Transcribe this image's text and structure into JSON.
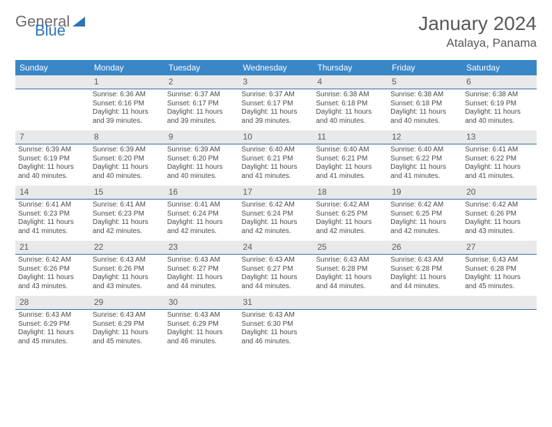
{
  "logo": {
    "part1": "General",
    "part2": "Blue"
  },
  "title": "January 2024",
  "location": "Atalaya, Panama",
  "colors": {
    "header_bg": "#3a87c8",
    "header_text": "#ffffff",
    "daynum_bg": "#e9e9e9",
    "daynum_border": "#2e6ba5",
    "body_text": "#4a4a4a",
    "title_text": "#595959",
    "logo_gray": "#6b6b6b",
    "logo_blue": "#2e72b8"
  },
  "dayHeaders": [
    "Sunday",
    "Monday",
    "Tuesday",
    "Wednesday",
    "Thursday",
    "Friday",
    "Saturday"
  ],
  "weeks": [
    [
      {
        "n": "",
        "lines": []
      },
      {
        "n": "1",
        "lines": [
          "Sunrise: 6:36 AM",
          "Sunset: 6:16 PM",
          "Daylight: 11 hours and 39 minutes."
        ]
      },
      {
        "n": "2",
        "lines": [
          "Sunrise: 6:37 AM",
          "Sunset: 6:17 PM",
          "Daylight: 11 hours and 39 minutes."
        ]
      },
      {
        "n": "3",
        "lines": [
          "Sunrise: 6:37 AM",
          "Sunset: 6:17 PM",
          "Daylight: 11 hours and 39 minutes."
        ]
      },
      {
        "n": "4",
        "lines": [
          "Sunrise: 6:38 AM",
          "Sunset: 6:18 PM",
          "Daylight: 11 hours and 40 minutes."
        ]
      },
      {
        "n": "5",
        "lines": [
          "Sunrise: 6:38 AM",
          "Sunset: 6:18 PM",
          "Daylight: 11 hours and 40 minutes."
        ]
      },
      {
        "n": "6",
        "lines": [
          "Sunrise: 6:38 AM",
          "Sunset: 6:19 PM",
          "Daylight: 11 hours and 40 minutes."
        ]
      }
    ],
    [
      {
        "n": "7",
        "lines": [
          "Sunrise: 6:39 AM",
          "Sunset: 6:19 PM",
          "Daylight: 11 hours and 40 minutes."
        ]
      },
      {
        "n": "8",
        "lines": [
          "Sunrise: 6:39 AM",
          "Sunset: 6:20 PM",
          "Daylight: 11 hours and 40 minutes."
        ]
      },
      {
        "n": "9",
        "lines": [
          "Sunrise: 6:39 AM",
          "Sunset: 6:20 PM",
          "Daylight: 11 hours and 40 minutes."
        ]
      },
      {
        "n": "10",
        "lines": [
          "Sunrise: 6:40 AM",
          "Sunset: 6:21 PM",
          "Daylight: 11 hours and 41 minutes."
        ]
      },
      {
        "n": "11",
        "lines": [
          "Sunrise: 6:40 AM",
          "Sunset: 6:21 PM",
          "Daylight: 11 hours and 41 minutes."
        ]
      },
      {
        "n": "12",
        "lines": [
          "Sunrise: 6:40 AM",
          "Sunset: 6:22 PM",
          "Daylight: 11 hours and 41 minutes."
        ]
      },
      {
        "n": "13",
        "lines": [
          "Sunrise: 6:41 AM",
          "Sunset: 6:22 PM",
          "Daylight: 11 hours and 41 minutes."
        ]
      }
    ],
    [
      {
        "n": "14",
        "lines": [
          "Sunrise: 6:41 AM",
          "Sunset: 6:23 PM",
          "Daylight: 11 hours and 41 minutes."
        ]
      },
      {
        "n": "15",
        "lines": [
          "Sunrise: 6:41 AM",
          "Sunset: 6:23 PM",
          "Daylight: 11 hours and 42 minutes."
        ]
      },
      {
        "n": "16",
        "lines": [
          "Sunrise: 6:41 AM",
          "Sunset: 6:24 PM",
          "Daylight: 11 hours and 42 minutes."
        ]
      },
      {
        "n": "17",
        "lines": [
          "Sunrise: 6:42 AM",
          "Sunset: 6:24 PM",
          "Daylight: 11 hours and 42 minutes."
        ]
      },
      {
        "n": "18",
        "lines": [
          "Sunrise: 6:42 AM",
          "Sunset: 6:25 PM",
          "Daylight: 11 hours and 42 minutes."
        ]
      },
      {
        "n": "19",
        "lines": [
          "Sunrise: 6:42 AM",
          "Sunset: 6:25 PM",
          "Daylight: 11 hours and 42 minutes."
        ]
      },
      {
        "n": "20",
        "lines": [
          "Sunrise: 6:42 AM",
          "Sunset: 6:26 PM",
          "Daylight: 11 hours and 43 minutes."
        ]
      }
    ],
    [
      {
        "n": "21",
        "lines": [
          "Sunrise: 6:42 AM",
          "Sunset: 6:26 PM",
          "Daylight: 11 hours and 43 minutes."
        ]
      },
      {
        "n": "22",
        "lines": [
          "Sunrise: 6:43 AM",
          "Sunset: 6:26 PM",
          "Daylight: 11 hours and 43 minutes."
        ]
      },
      {
        "n": "23",
        "lines": [
          "Sunrise: 6:43 AM",
          "Sunset: 6:27 PM",
          "Daylight: 11 hours and 44 minutes."
        ]
      },
      {
        "n": "24",
        "lines": [
          "Sunrise: 6:43 AM",
          "Sunset: 6:27 PM",
          "Daylight: 11 hours and 44 minutes."
        ]
      },
      {
        "n": "25",
        "lines": [
          "Sunrise: 6:43 AM",
          "Sunset: 6:28 PM",
          "Daylight: 11 hours and 44 minutes."
        ]
      },
      {
        "n": "26",
        "lines": [
          "Sunrise: 6:43 AM",
          "Sunset: 6:28 PM",
          "Daylight: 11 hours and 44 minutes."
        ]
      },
      {
        "n": "27",
        "lines": [
          "Sunrise: 6:43 AM",
          "Sunset: 6:28 PM",
          "Daylight: 11 hours and 45 minutes."
        ]
      }
    ],
    [
      {
        "n": "28",
        "lines": [
          "Sunrise: 6:43 AM",
          "Sunset: 6:29 PM",
          "Daylight: 11 hours and 45 minutes."
        ]
      },
      {
        "n": "29",
        "lines": [
          "Sunrise: 6:43 AM",
          "Sunset: 6:29 PM",
          "Daylight: 11 hours and 45 minutes."
        ]
      },
      {
        "n": "30",
        "lines": [
          "Sunrise: 6:43 AM",
          "Sunset: 6:29 PM",
          "Daylight: 11 hours and 46 minutes."
        ]
      },
      {
        "n": "31",
        "lines": [
          "Sunrise: 6:43 AM",
          "Sunset: 6:30 PM",
          "Daylight: 11 hours and 46 minutes."
        ]
      },
      {
        "n": "",
        "lines": []
      },
      {
        "n": "",
        "lines": []
      },
      {
        "n": "",
        "lines": []
      }
    ]
  ]
}
